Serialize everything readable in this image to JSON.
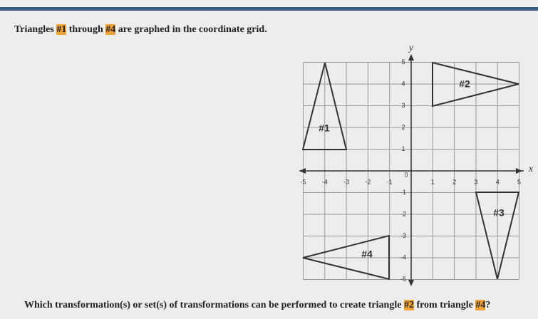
{
  "intro": {
    "before": "Triangles ",
    "first": "#1",
    "middle": " through ",
    "last": "#4",
    "after": " are graphed in the coordinate grid."
  },
  "graph": {
    "x_label": "x",
    "y_label": "y",
    "origin": "0",
    "x_ticks": [
      -5,
      -4,
      -3,
      -2,
      -1,
      1,
      2,
      3,
      4,
      5
    ],
    "y_ticks": [
      5,
      4,
      3,
      2,
      1,
      -1,
      -2,
      -3,
      -4,
      -5
    ],
    "triangles": [
      "#1",
      "#2",
      "#3",
      "#4"
    ]
  },
  "question": {
    "before": "Which transformation(s) or set(s) of transformations can be performed to create triangle ",
    "target": "#2",
    "middle": " from triangle ",
    "source": "#4",
    "after": "?"
  }
}
